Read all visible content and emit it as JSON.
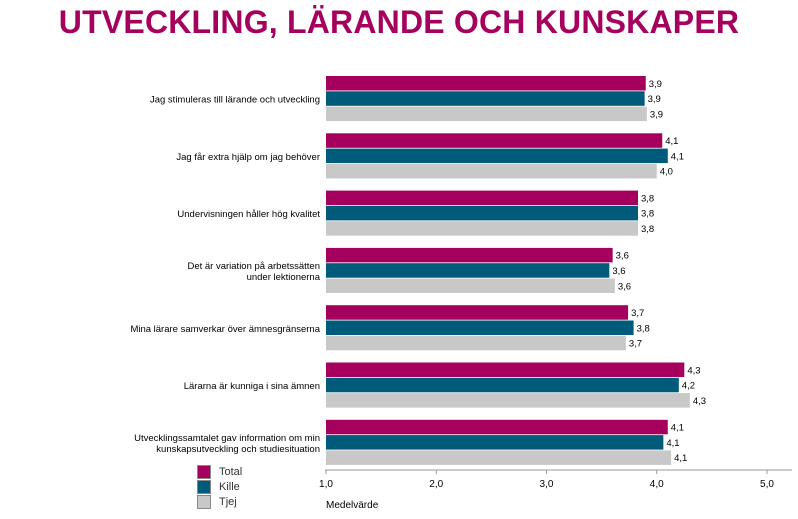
{
  "title": "UTVECKLING, LÄRANDE OCH KUNSKAPER",
  "colors": {
    "title": "#a6005e"
  },
  "chart_data": {
    "type": "bar",
    "orientation": "horizontal",
    "categories": [
      [
        "Jag stimuleras till lärande och utveckling"
      ],
      [
        "Jag får extra hjälp om jag behöver"
      ],
      [
        "Undervisningen håller hög kvalitet"
      ],
      [
        "Det är variation på arbetssätten",
        "under lektionerna"
      ],
      [
        "Mina lärare samverkar över ämnesgränserna"
      ],
      [
        "Lärarna är kunniga i sina ämnen"
      ],
      [
        "Utvecklingssamtalet gav information om min",
        "kunskapsutveckling och studiesituation"
      ]
    ],
    "series": [
      {
        "name": "Total",
        "color": "#a6005e",
        "values": [
          3.9,
          4.05,
          3.83,
          3.6,
          3.74,
          4.25,
          4.1
        ],
        "labels": [
          "3,9",
          "4,1",
          "3,8",
          "3,6",
          "3,7",
          "4,3",
          "4,1"
        ]
      },
      {
        "name": "Kille",
        "color": "#005a7a",
        "values": [
          3.89,
          4.1,
          3.83,
          3.57,
          3.79,
          4.2,
          4.06
        ],
        "labels": [
          "3,9",
          "4,1",
          "3,8",
          "3,6",
          "3,8",
          "4,2",
          "4,1"
        ]
      },
      {
        "name": "Tjej",
        "color": "#c8c8c8",
        "values": [
          3.91,
          4.0,
          3.83,
          3.62,
          3.72,
          4.3,
          4.13
        ],
        "labels": [
          "3,9",
          "4,0",
          "3,8",
          "3,6",
          "3,7",
          "4,3",
          "4,1"
        ]
      }
    ],
    "xlim": [
      1.0,
      5.0
    ],
    "xticks": [
      "1,0",
      "2,0",
      "3,0",
      "4,0",
      "5,0"
    ],
    "xlabel": "Medelvärde",
    "ylabel": "",
    "legend": "bottom-left",
    "grid": false
  }
}
